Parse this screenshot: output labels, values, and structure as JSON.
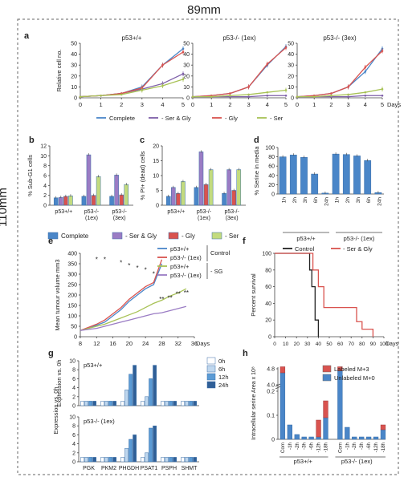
{
  "page": {
    "width_label": "89mm",
    "height_label": "110mm"
  },
  "chart_data": [
    {
      "id": "a1",
      "panel": "a",
      "type": "line",
      "title": "p53+/+",
      "ylabel": "Relative cell no.",
      "ylim": [
        0,
        50
      ],
      "yticks": [
        0,
        10,
        20,
        30,
        40,
        50
      ],
      "x": [
        0,
        1,
        2,
        3,
        4,
        5
      ],
      "xlim": [
        0,
        5
      ],
      "series": [
        {
          "name": "Complete",
          "color": "#4a86c8",
          "values": [
            1,
            2,
            4,
            10,
            30,
            45
          ]
        },
        {
          "name": "- Ser & Gly",
          "color": "#7d5ea8",
          "values": [
            1,
            2,
            4,
            8,
            13,
            22
          ]
        },
        {
          "name": "- Gly",
          "color": "#d9534f",
          "values": [
            1,
            2,
            4,
            9,
            30,
            42
          ]
        },
        {
          "name": "- Ser",
          "color": "#a8c256",
          "values": [
            1,
            2,
            3,
            7,
            11,
            17
          ]
        }
      ]
    },
    {
      "id": "a2",
      "panel": "a",
      "type": "line",
      "title": "p53-/- (1ex)",
      "ylabel": "",
      "ylim": [
        0,
        50
      ],
      "yticks": [
        0,
        10,
        20,
        30,
        40,
        50
      ],
      "x": [
        0,
        1,
        2,
        3,
        4,
        5
      ],
      "xlim": [
        0,
        5
      ],
      "series": [
        {
          "name": "Complete",
          "color": "#4a86c8",
          "values": [
            1,
            2,
            4,
            10,
            30,
            47
          ]
        },
        {
          "name": "- Ser & Gly",
          "color": "#7d5ea8",
          "values": [
            1,
            1,
            1,
            1,
            2,
            2
          ]
        },
        {
          "name": "- Gly",
          "color": "#d9534f",
          "values": [
            1,
            2,
            4,
            10,
            31,
            46
          ]
        },
        {
          "name": "- Ser",
          "color": "#a8c256",
          "values": [
            1,
            1,
            2,
            3,
            5,
            7
          ]
        }
      ]
    },
    {
      "id": "a3",
      "panel": "a",
      "type": "line",
      "title": "p53-/- (3ex)",
      "ylabel": "",
      "ylim": [
        0,
        50
      ],
      "yticks": [
        0,
        10,
        20,
        30,
        40,
        50
      ],
      "x": [
        0,
        1,
        2,
        3,
        4,
        5
      ],
      "xlim": [
        0,
        5
      ],
      "xunit": "Days",
      "series": [
        {
          "name": "Complete",
          "color": "#4a86c8",
          "values": [
            1,
            2,
            4,
            10,
            24,
            45
          ]
        },
        {
          "name": "- Ser & Gly",
          "color": "#7d5ea8",
          "values": [
            1,
            1,
            1,
            1,
            2,
            2
          ]
        },
        {
          "name": "- Gly",
          "color": "#d9534f",
          "values": [
            1,
            2,
            4,
            10,
            28,
            43
          ]
        },
        {
          "name": "- Ser",
          "color": "#a8c256",
          "values": [
            1,
            1,
            2,
            3,
            5,
            8
          ]
        }
      ]
    },
    {
      "id": "b",
      "panel": "b",
      "type": "bar",
      "ylabel": "% Sub-G1 cells",
      "ylim": [
        0,
        12
      ],
      "yticks": [
        0,
        2,
        4,
        6,
        8,
        10,
        12
      ],
      "categories": [
        "p53+/+",
        "p53-/- (1ex)",
        "p53-/- (3ex)"
      ],
      "series": [
        {
          "name": "Complete",
          "color": "#4a86c8",
          "values": [
            1.5,
            1.8,
            1.8
          ]
        },
        {
          "name": "- Ser & Gly",
          "color": "#9a7cc4",
          "values": [
            1.6,
            10.2,
            6.1
          ]
        },
        {
          "name": "- Gly",
          "color": "#d9534f",
          "values": [
            1.8,
            2.0,
            2.1
          ]
        },
        {
          "name": "- Ser",
          "color": "#c3db7e",
          "values": [
            1.9,
            5.8,
            4.2
          ]
        }
      ]
    },
    {
      "id": "c",
      "panel": "c",
      "type": "bar",
      "ylabel": "% PI+ (dead) cells",
      "ylim": [
        0,
        20
      ],
      "yticks": [
        0,
        5,
        10,
        15,
        20
      ],
      "categories": [
        "p53+/+",
        "p53-/- (1ex)",
        "p53-/- (3ex)"
      ],
      "series": [
        {
          "name": "Complete",
          "color": "#4a86c8",
          "values": [
            3,
            6,
            4
          ]
        },
        {
          "name": "- Ser & Gly",
          "color": "#9a7cc4",
          "values": [
            6,
            18,
            12
          ]
        },
        {
          "name": "- Gly",
          "color": "#d9534f",
          "values": [
            4,
            7,
            5
          ]
        },
        {
          "name": "- Ser",
          "color": "#c3db7e",
          "values": [
            8,
            12,
            12
          ]
        }
      ]
    },
    {
      "id": "d",
      "panel": "d",
      "type": "bar",
      "ylabel": "% Serine in media",
      "ylim": [
        0,
        100
      ],
      "yticks": [
        0,
        20,
        40,
        60,
        80,
        100
      ],
      "categories": [
        "1h",
        "2h",
        "3h",
        "6h",
        "24h",
        "1h",
        "2h",
        "3h",
        "6h",
        "24h"
      ],
      "groups": [
        "p53+/+",
        "p53-/- (1ex)"
      ],
      "series": [
        {
          "name": "Serine",
          "color": "#4a86c8",
          "values": [
            80,
            84,
            79,
            43,
            2,
            86,
            85,
            82,
            72,
            3
          ]
        }
      ]
    },
    {
      "id": "e",
      "panel": "e",
      "type": "line",
      "ylabel": "Mean tumour volume mm3",
      "xlabel": "Days",
      "ylim": [
        0,
        400
      ],
      "yticks": [
        0,
        50,
        100,
        150,
        200,
        250,
        300,
        350,
        400
      ],
      "xlim": [
        8,
        36
      ],
      "xticks": [
        8,
        12,
        16,
        20,
        24,
        28,
        32,
        36
      ],
      "x": [
        8,
        10,
        12,
        14,
        16,
        18,
        20,
        22,
        24,
        26,
        28
      ],
      "series": [
        {
          "name": "p53+/+",
          "group": "Control",
          "color": "#4a86c8",
          "values": [
            30,
            40,
            55,
            70,
            100,
            130,
            170,
            200,
            230,
            250,
            350
          ]
        },
        {
          "name": "p53-/- (1ex)",
          "group": "Control",
          "color": "#d9534f",
          "values": [
            30,
            45,
            60,
            80,
            110,
            140,
            180,
            210,
            240,
            260,
            370
          ]
        }
      ],
      "series_sg": {
        "x": [
          8,
          10,
          12,
          14,
          16,
          18,
          20,
          22,
          24,
          26,
          28,
          30,
          32,
          34
        ],
        "items": [
          {
            "name": "p53+/+",
            "group": "- SG",
            "color": "#a8c256",
            "values": [
              30,
              40,
              50,
              60,
              75,
              90,
              105,
              120,
              140,
              160,
              175,
              195,
              210,
              230
            ]
          },
          {
            "name": "p53-/- (1ex)",
            "group": "- SG",
            "color": "#9a7cc4",
            "values": [
              30,
              35,
              40,
              50,
              60,
              70,
              80,
              90,
              100,
              110,
              115,
              125,
              135,
              145
            ]
          }
        ]
      },
      "legend_groups": [
        "Control",
        "- SG"
      ],
      "annotations": [
        "*",
        "*",
        "*",
        "*",
        "*",
        "*",
        "*",
        "**",
        "**",
        "**",
        "**"
      ]
    },
    {
      "id": "f",
      "panel": "f",
      "type": "line",
      "ylabel": "Percent survival",
      "xlabel": "Days",
      "ylim": [
        0,
        100
      ],
      "yticks": [
        0,
        20,
        40,
        60,
        80,
        100
      ],
      "xlim": [
        0,
        100
      ],
      "xticks": [
        0,
        10,
        20,
        30,
        40,
        50,
        60,
        70,
        80,
        90,
        100
      ],
      "series": [
        {
          "name": "Control",
          "color": "#222222",
          "x": [
            0,
            32,
            32,
            34,
            34,
            37,
            37,
            40,
            40
          ],
          "values": [
            100,
            100,
            80,
            80,
            60,
            60,
            20,
            20,
            0
          ]
        },
        {
          "name": "- Ser & Gly",
          "color": "#d9534f",
          "x": [
            0,
            35,
            35,
            40,
            40,
            45,
            45,
            75,
            75,
            80,
            80,
            90,
            90
          ],
          "values": [
            100,
            100,
            80,
            80,
            60,
            60,
            35,
            35,
            18,
            18,
            9,
            9,
            0
          ]
        }
      ]
    },
    {
      "id": "g1",
      "panel": "g",
      "type": "bar",
      "title": "p53+/+",
      "ylabel": "Expression vs. 0h",
      "ylim": [
        0,
        10
      ],
      "yticks": [
        0,
        2,
        4,
        6,
        8,
        10
      ],
      "categories": [
        "PGK",
        "PKM2",
        "PHGDH",
        "PSAT1",
        "PSPH",
        "SHMT"
      ],
      "series": [
        {
          "name": "0h",
          "color": "#ffffff",
          "values": [
            1,
            1,
            1,
            1,
            1,
            1
          ]
        },
        {
          "name": "6h",
          "color": "#bfd7ee",
          "values": [
            1,
            1,
            3.5,
            2,
            1,
            1
          ]
        },
        {
          "name": "12h",
          "color": "#5b9bd5",
          "values": [
            1,
            1,
            7,
            6,
            1,
            1
          ]
        },
        {
          "name": "24h",
          "color": "#2f5f97",
          "values": [
            1,
            1,
            9,
            9,
            1,
            1
          ]
        }
      ]
    },
    {
      "id": "g2",
      "panel": "g",
      "type": "bar",
      "title": "p53-/- (1ex)",
      "ylabel": "",
      "ylim": [
        0,
        10
      ],
      "yticks": [
        0,
        2,
        4,
        6,
        8,
        10
      ],
      "categories": [
        "PGK",
        "PKM2",
        "PHGDH",
        "PSAT1",
        "PSPH",
        "SHMT"
      ],
      "series": [
        {
          "name": "0h",
          "color": "#ffffff",
          "values": [
            1,
            1,
            1,
            1,
            1,
            1
          ]
        },
        {
          "name": "6h",
          "color": "#bfd7ee",
          "values": [
            1,
            1,
            3,
            2,
            1,
            1
          ]
        },
        {
          "name": "12h",
          "color": "#5b9bd5",
          "values": [
            1,
            1,
            5,
            7.5,
            1,
            1
          ]
        },
        {
          "name": "24h",
          "color": "#2f5f97",
          "values": [
            1,
            1,
            6,
            8,
            1,
            1
          ]
        }
      ]
    },
    {
      "id": "h",
      "panel": "h",
      "type": "bar",
      "stacked": true,
      "ylabel": "Intracellular serine Area x 10⁸",
      "yticks": [
        "0",
        "0.1",
        "0.2",
        "4.0",
        "4.8"
      ],
      "categories": [
        "Com",
        "-1h",
        "-2h",
        "-3h",
        "-6h",
        "-12h",
        "-18h",
        "Com",
        "-1h",
        "-2h",
        "-3h",
        "-6h",
        "-12h",
        "-18h"
      ],
      "groups": [
        "p53+/+",
        "p53-/- (1ex)"
      ],
      "series": [
        {
          "name": "Unlabeled M+0",
          "color": "#4a86c8",
          "values": [
            4.6,
            0.06,
            0.02,
            0.01,
            0.01,
            0.01,
            0.09,
            4.7,
            0.05,
            0.01,
            0.01,
            0.01,
            0.01,
            0.04
          ]
        },
        {
          "name": "Labeled M+3",
          "color": "#d9534f",
          "values": [
            0.3,
            0.0,
            0.0,
            0.0,
            0.0,
            0.07,
            0.07,
            0.2,
            0.0,
            0.0,
            0.0,
            0.0,
            0.0,
            0.02
          ]
        }
      ]
    }
  ],
  "labels": {
    "a_legend": [
      "Complete",
      "- Ser & Gly",
      "- Gly",
      "- Ser"
    ],
    "bc_legend": [
      "Complete",
      "- Ser & Gly",
      "- Gly",
      "- Ser"
    ],
    "d_groups": [
      "p53+/+",
      "p53-/- (1ex)"
    ],
    "e_group_control": "Control",
    "e_group_sg": "- SG",
    "f_legend": [
      "Control",
      "- Ser & Gly"
    ],
    "g_legend": [
      "0h",
      "6h",
      "12h",
      "24h"
    ],
    "h_legend": [
      "Labeled M+3",
      "Unlabeled M+0"
    ]
  }
}
